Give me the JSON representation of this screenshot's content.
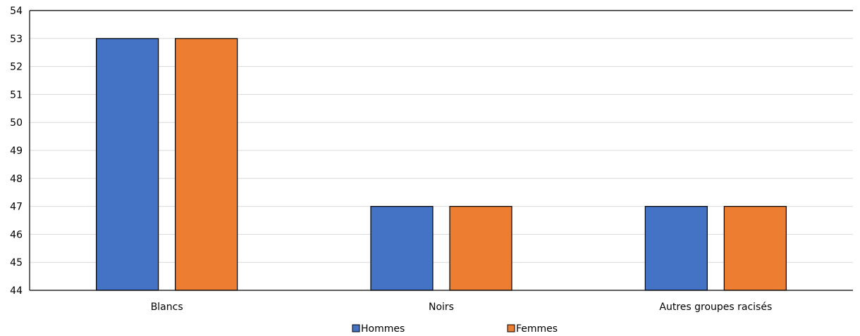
{
  "chart_data": {
    "type": "bar",
    "categories": [
      "Blancs",
      "Noirs",
      "Autres groupes racisés"
    ],
    "series": [
      {
        "name": "Hommes",
        "values": [
          53,
          47,
          47
        ],
        "color": "#4472c4"
      },
      {
        "name": "Femmes",
        "values": [
          53,
          47,
          47
        ],
        "color": "#ed7d31"
      }
    ],
    "title": "",
    "xlabel": "",
    "ylabel": "",
    "ylim": [
      44,
      54
    ],
    "yticks": [
      "44",
      "45",
      "46",
      "47",
      "48",
      "49",
      "50",
      "51",
      "52",
      "53",
      "54"
    ],
    "grid": true,
    "legend_position": "bottom"
  }
}
